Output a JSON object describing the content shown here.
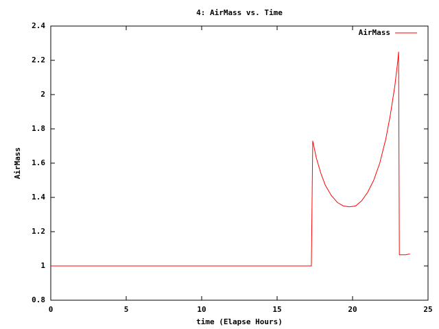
{
  "chart_data": {
    "type": "line",
    "title": "4: AirMass vs. Time",
    "x_label": "time (Elapse Hours)",
    "y_label": "AirMass",
    "x": [
      0,
      17.27,
      17.36,
      17.6,
      17.9,
      18.2,
      18.6,
      19.0,
      19.4,
      19.8,
      20.2,
      20.6,
      21.0,
      21.4,
      21.8,
      22.2,
      22.5,
      22.8,
      23.0,
      23.05,
      23.1,
      23.5,
      23.8
    ],
    "series": [
      {
        "name": "AirMass",
        "color": "#ff0000",
        "values": [
          1.0,
          1.0,
          1.73,
          1.63,
          1.54,
          1.47,
          1.41,
          1.37,
          1.35,
          1.345,
          1.35,
          1.38,
          1.43,
          1.5,
          1.6,
          1.74,
          1.88,
          2.05,
          2.2,
          2.25,
          1.065,
          1.065,
          1.07
        ]
      }
    ],
    "xlim": [
      0,
      25
    ],
    "xticks": [
      0,
      5,
      10,
      15,
      20,
      25
    ],
    "ylim": [
      0.8,
      2.4
    ],
    "yticks": [
      0.8,
      1,
      1.2,
      1.4,
      1.6,
      1.8,
      2,
      2.2,
      2.4
    ],
    "legend": "top-right"
  }
}
